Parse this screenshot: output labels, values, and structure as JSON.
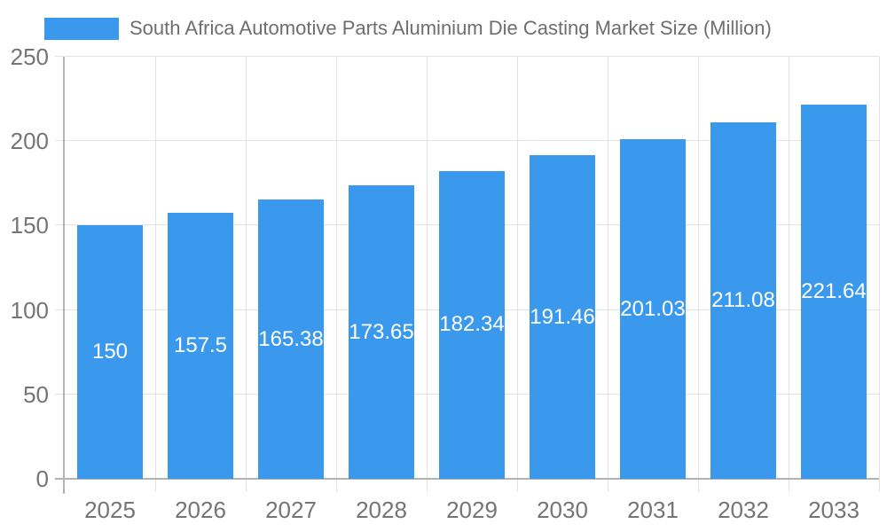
{
  "chart_data": {
    "type": "bar",
    "title": "South Africa Automotive Parts Aluminium Die Casting Market Size (Million)",
    "categories": [
      "2025",
      "2026",
      "2027",
      "2028",
      "2029",
      "2030",
      "2031",
      "2032",
      "2033"
    ],
    "values": [
      150,
      157.5,
      165.38,
      173.65,
      182.34,
      191.46,
      201.03,
      211.08,
      221.64
    ],
    "value_labels": [
      "150",
      "157.5",
      "165.38",
      "173.65",
      "182.34",
      "191.46",
      "201.03",
      "211.08",
      "221.64"
    ],
    "yticks": [
      0,
      50,
      100,
      150,
      200,
      250
    ],
    "ytick_labels": [
      "0",
      "50",
      "100",
      "150",
      "200",
      "250"
    ],
    "ylim": [
      0,
      250
    ],
    "xlabel": "",
    "ylabel": "",
    "legend_position": "top-left",
    "grid": true,
    "colors": {
      "bar": "#3A99EC",
      "grid": "#e3e3e3",
      "axis": "#b3b3b3",
      "tick_label": "#757575",
      "title_text": "#6e6e6e",
      "value_label": "#ffffff",
      "background": "#ffffff"
    }
  }
}
